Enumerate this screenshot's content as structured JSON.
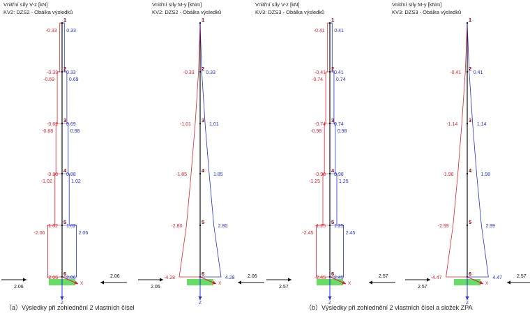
{
  "colors": {
    "negative": "#e0202a",
    "positive": "#2030d0",
    "member": "#111111",
    "support": "#66dd66",
    "node_label": "#8b0000",
    "member_top": "#8822aa"
  },
  "captions": [
    {
      "marker": "（a）",
      "text": "Výsledky při zohlednění 2 vlastních čísel"
    },
    {
      "marker": "（b）",
      "text": "Výsledky při zohlednění 2 vlastních čísel a složek ZPA"
    }
  ],
  "axis_labels": {
    "x": "X",
    "z": "Z"
  },
  "panels": [
    {
      "title1": "Vnitřní síly V-z [kN]",
      "title2": "KV2: DZS2 - Obálka výsledků",
      "kind": "shear",
      "nodes": [
        {
          "id": "1",
          "neg": null,
          "pos": null
        },
        {
          "id": "2",
          "neg": "-0.33",
          "pos": "0.33"
        },
        {
          "id": "3",
          "neg": "-0.69",
          "pos": "0.69"
        },
        {
          "id": "4",
          "neg": "-0.88",
          "pos": "0.88"
        },
        {
          "id": "5",
          "neg": "-1.02",
          "pos": "1.02"
        },
        {
          "id": "6",
          "neg": "-2.06",
          "pos": "2.06"
        }
      ],
      "segs": [
        {
          "neg": "-0.33",
          "pos": "0.33"
        },
        {
          "neg": "-0.69",
          "pos": "0.69"
        },
        {
          "neg": "-0.88",
          "pos": "0.88"
        },
        {
          "neg": "-1.02",
          "pos": "1.02"
        },
        {
          "neg": "-2.06",
          "pos": "2.06"
        }
      ],
      "forces": {
        "left": "2.06",
        "right": "2.06"
      }
    },
    {
      "title1": "Vnitřní síly M-y [kNm]",
      "title2": "KV2: DZS2 - Obálka výsledků",
      "kind": "moment",
      "nodes": [
        {
          "id": "1",
          "neg": null,
          "pos": null
        },
        {
          "id": "2",
          "neg": "-0.33",
          "pos": "0.33"
        },
        {
          "id": "3",
          "neg": "-1.01",
          "pos": "1.01"
        },
        {
          "id": "4",
          "neg": "-1.85",
          "pos": "1.85"
        },
        {
          "id": "5",
          "neg": "-2.80",
          "pos": "2.80"
        },
        {
          "id": "6",
          "neg": "-4.28",
          "pos": "4.28"
        }
      ],
      "segs": [],
      "forces": {
        "left": "2.06",
        "right": "2.06"
      }
    },
    {
      "title1": "Vnitřní síly V-z [kN]",
      "title2": "KV3: DZS3 - Obálka výsledků",
      "kind": "shear",
      "nodes": [
        {
          "id": "1",
          "neg": null,
          "pos": null
        },
        {
          "id": "2",
          "neg": "-0.41",
          "pos": "0.41"
        },
        {
          "id": "3",
          "neg": "-0.74",
          "pos": "0.74"
        },
        {
          "id": "4",
          "neg": "-0.98",
          "pos": "0.98"
        },
        {
          "id": "5",
          "neg": "-1.25",
          "pos": "1.25"
        },
        {
          "id": "6",
          "neg": "-2.45",
          "pos": "2.45"
        }
      ],
      "segs": [
        {
          "neg": "-0.41",
          "pos": "0.41"
        },
        {
          "neg": "-0.74",
          "pos": "0.74"
        },
        {
          "neg": "-0.98",
          "pos": "0.98"
        },
        {
          "neg": "-1.25",
          "pos": "1.25"
        },
        {
          "neg": "-2.45",
          "pos": "2.45"
        }
      ],
      "forces": {
        "left": "2.57",
        "right": "2.57"
      }
    },
    {
      "title1": "Vnitřní síly M-y [kNm]",
      "title2": "KV3: DZS3 - Obálka výsledků",
      "kind": "moment",
      "nodes": [
        {
          "id": "1",
          "neg": null,
          "pos": null
        },
        {
          "id": "2",
          "neg": "-0.41",
          "pos": "0.41"
        },
        {
          "id": "3",
          "neg": "-1.14",
          "pos": "1.14"
        },
        {
          "id": "4",
          "neg": "-1.98",
          "pos": "1.98"
        },
        {
          "id": "5",
          "neg": "-2.99",
          "pos": "2.99"
        },
        {
          "id": "6",
          "neg": "-4.47",
          "pos": "4.47"
        }
      ],
      "segs": [],
      "forces": {
        "left": "2.57",
        "right": "2.57"
      }
    }
  ]
}
